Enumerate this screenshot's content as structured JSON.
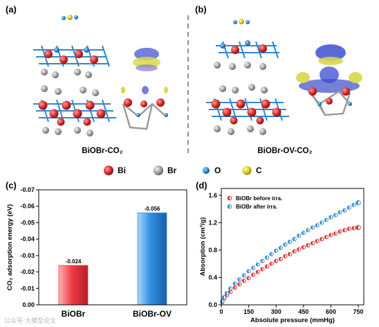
{
  "panels": {
    "a": {
      "label": "(a)",
      "caption": "BiOBr-CO₂"
    },
    "b": {
      "label": "(b)",
      "caption": "BiOBr-OV-CO₂"
    },
    "c": {
      "label": "(c)"
    },
    "d": {
      "label": "(d)"
    }
  },
  "atom_legend": [
    {
      "symbol": "Bi",
      "color": "#d42a2a"
    },
    {
      "symbol": "Br",
      "color": "#9e9e9e"
    },
    {
      "symbol": "O",
      "color": "#2f86cf"
    },
    {
      "symbol": "C",
      "color": "#d9cc1f"
    }
  ],
  "watermark": "公众号·大模型论文",
  "chart_data": [
    {
      "type": "bar",
      "panel": "c",
      "categories": [
        "BiOBr",
        "BiOBr-OV"
      ],
      "values": [
        -0.024,
        -0.056
      ],
      "data_labels": [
        "-0.024",
        "-0.056"
      ],
      "bar_colors": [
        "#ef3b45",
        "#2e8fe0"
      ],
      "title": "",
      "xlabel": "",
      "ylabel": "CO₂ adsorption energy (eV)",
      "ylim": [
        0,
        -0.07
      ],
      "y_axis_inverted": true,
      "yticks": [
        "0.00",
        "-0.01",
        "-0.02",
        "-0.03",
        "-0.04",
        "-0.05",
        "-0.06",
        "-0.07"
      ],
      "grid": false
    },
    {
      "type": "scatter",
      "panel": "d",
      "xlabel": "Absolute pressure (mmHg)",
      "ylabel": "Absorption (cm³/g)",
      "xlim": [
        0,
        780
      ],
      "ylim": [
        0,
        1.7
      ],
      "xticks": [
        "0",
        "150",
        "300",
        "450",
        "600",
        "750"
      ],
      "yticks": [
        "0.0",
        "0.4",
        "0.8",
        "1.2",
        "1.6"
      ],
      "legend_position": "top-left",
      "grid": false,
      "series": [
        {
          "name": "BiOBr before irra.",
          "color": "#d93a3a",
          "x": [
            5,
            15,
            30,
            50,
            75,
            100,
            125,
            150,
            175,
            200,
            225,
            250,
            275,
            300,
            325,
            350,
            375,
            400,
            425,
            450,
            475,
            500,
            525,
            550,
            575,
            600,
            625,
            650,
            675,
            700,
            725,
            750
          ],
          "y": [
            0.04,
            0.09,
            0.14,
            0.19,
            0.25,
            0.3,
            0.35,
            0.39,
            0.44,
            0.48,
            0.52,
            0.56,
            0.6,
            0.64,
            0.67,
            0.71,
            0.74,
            0.78,
            0.81,
            0.84,
            0.87,
            0.9,
            0.93,
            0.96,
            0.99,
            1.02,
            1.04,
            1.07,
            1.09,
            1.11,
            1.12,
            1.13
          ]
        },
        {
          "name": "BiOBr after irra.",
          "color": "#3a8ed6",
          "x": [
            5,
            15,
            30,
            50,
            75,
            100,
            125,
            150,
            175,
            200,
            225,
            250,
            275,
            300,
            325,
            350,
            375,
            400,
            425,
            450,
            475,
            500,
            525,
            550,
            575,
            600,
            625,
            650,
            675,
            700,
            725,
            750
          ],
          "y": [
            0.05,
            0.11,
            0.17,
            0.24,
            0.31,
            0.37,
            0.43,
            0.49,
            0.54,
            0.59,
            0.64,
            0.69,
            0.74,
            0.79,
            0.83,
            0.88,
            0.92,
            0.96,
            1.01,
            1.05,
            1.09,
            1.13,
            1.16,
            1.2,
            1.24,
            1.28,
            1.31,
            1.35,
            1.38,
            1.42,
            1.46,
            1.49
          ]
        }
      ]
    }
  ]
}
